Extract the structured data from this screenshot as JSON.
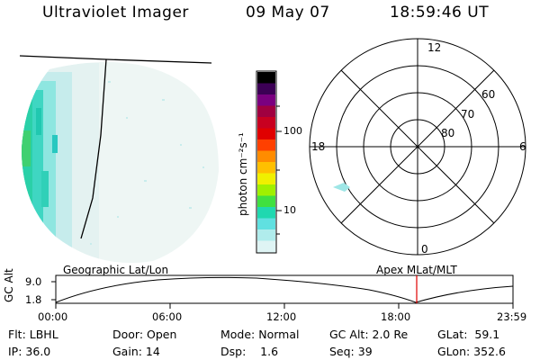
{
  "header": {
    "instrument": "Ultraviolet Imager",
    "date": "09 May 07",
    "time": "18:59:46 UT"
  },
  "colorbar": {
    "unit_label": "photon cm⁻²s⁻¹",
    "ticks": [
      {
        "label": "100",
        "value": 100
      },
      {
        "label": "10",
        "value": 10
      }
    ],
    "colors": [
      "#000000",
      "#3c0055",
      "#7a0080",
      "#a00040",
      "#c80020",
      "#e00000",
      "#ff4000",
      "#ff8c00",
      "#ffc000",
      "#f0f000",
      "#a0f000",
      "#40e040",
      "#20d8b0",
      "#60e0e0",
      "#b0ecec",
      "#dff4f4"
    ]
  },
  "polar_plot": {
    "mlt_labels": {
      "top": "12",
      "bottom": "0",
      "left": "18",
      "right": "6"
    },
    "lat_labels": [
      "60",
      "70",
      "80"
    ]
  },
  "timeline": {
    "left_title": "Geographic Lat/Lon",
    "right_title": "Apex MLat/MLT",
    "y_axis_label": "GC Alt",
    "y_ticks": [
      "9.0",
      "1.8"
    ],
    "x_ticks": [
      "00:00",
      "06:00",
      "12:00",
      "18:00",
      "23:59"
    ],
    "current_time_marker": "18:59",
    "line_color": "#000000",
    "marker_color": "#e00000"
  },
  "info": {
    "filter": "Flt: LBHL",
    "ip": "IP: 36.0",
    "door": "Door: Open",
    "gain": "Gain: 14",
    "mode": "Mode: Normal",
    "dsp": "Dsp:    1.6",
    "gc_alt": "GC Alt: 2.0 Re",
    "seq": "Seq: 39",
    "glat": "GLat:  59.1",
    "glon": "GLon: 352.6"
  }
}
